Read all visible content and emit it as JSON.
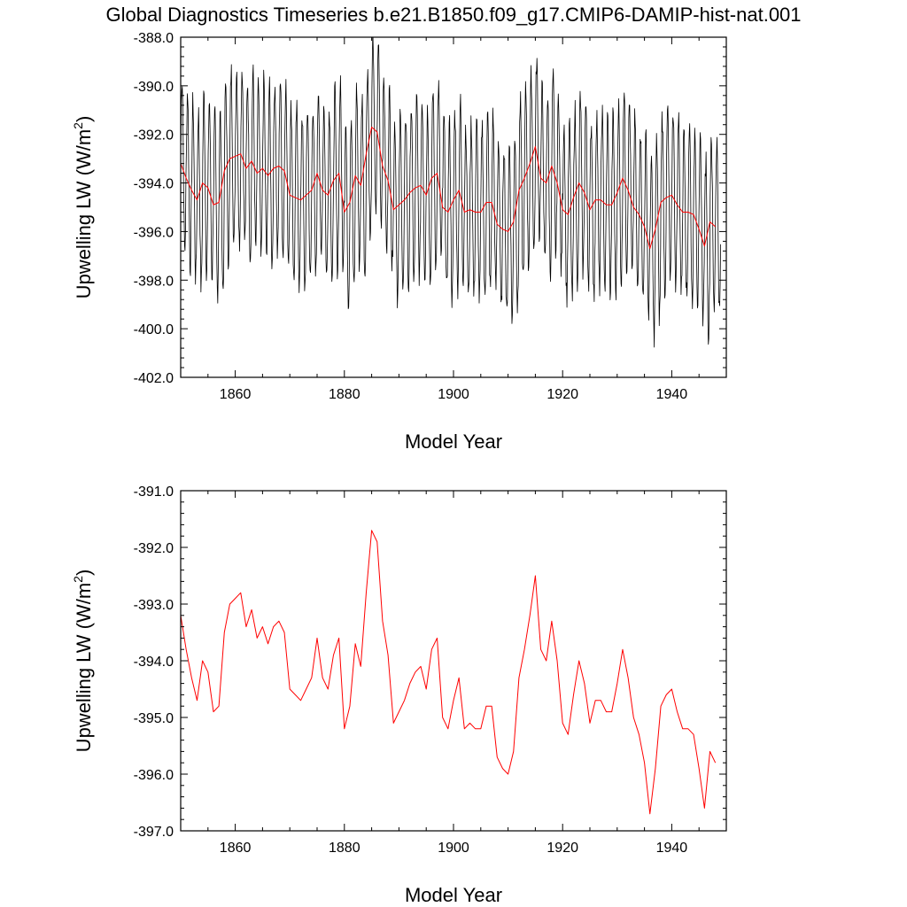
{
  "title": "Global Diagnostics Timeseries b.e21.B1850.f09_g17.CMIP6-DAMIP-hist-nat.001",
  "colors": {
    "monthly": "#000000",
    "annual": "#ff0000",
    "axis": "#000000"
  },
  "chart_data": [
    {
      "type": "line",
      "xlabel": "Model Year",
      "ylabel": "Upwelling LW (W/m",
      "ylabel_sup": "2",
      "ylabel_tail": ")",
      "xlim": [
        1850,
        1950
      ],
      "ylim": [
        -402.0,
        -388.0
      ],
      "x_ticks": [
        1860,
        1880,
        1900,
        1920,
        1940
      ],
      "y_ticks": [
        "-388.0",
        "-390.0",
        "-392.0",
        "-394.0",
        "-396.0",
        "-398.0",
        "-400.0",
        "-402.0"
      ],
      "series": [
        {
          "line_color": "#000000",
          "x_start": 1850.0417,
          "x_step": 0.083333,
          "mean": -394.4,
          "seasonal_amplitude": 3.6,
          "values_from_seasonal_cycle": true,
          "noise": 0.6
        },
        {
          "line_color": "#ff0000",
          "x_start": 1850,
          "x_step": 1,
          "values_from_annual": true
        }
      ]
    },
    {
      "type": "line",
      "xlabel": "Model Year",
      "ylabel": "Upwelling LW (W/m",
      "ylabel_sup": "2",
      "ylabel_tail": ")",
      "xlim": [
        1850,
        1950
      ],
      "ylim": [
        -397.0,
        -391.0
      ],
      "x_ticks": [
        1860,
        1880,
        1900,
        1920,
        1940
      ],
      "y_ticks": [
        "-391.0",
        "-392.0",
        "-393.0",
        "-394.0",
        "-395.0",
        "-396.0",
        "-397.0"
      ],
      "series": [
        {
          "line_color": "#ff0000",
          "x_start": 1850,
          "x_step": 1,
          "values": [
            -393.2,
            -393.8,
            -394.3,
            -394.7,
            -394.0,
            -394.2,
            -394.9,
            -394.8,
            -393.5,
            -393.0,
            -392.9,
            -392.8,
            -393.4,
            -393.1,
            -393.6,
            -393.4,
            -393.7,
            -393.4,
            -393.3,
            -393.5,
            -394.5,
            -394.6,
            -394.7,
            -394.5,
            -394.3,
            -393.6,
            -394.3,
            -394.5,
            -393.9,
            -393.6,
            -395.2,
            -394.8,
            -393.7,
            -394.1,
            -392.8,
            -391.7,
            -391.9,
            -393.3,
            -393.9,
            -395.1,
            -394.9,
            -394.7,
            -394.4,
            -394.2,
            -394.1,
            -394.5,
            -393.8,
            -393.6,
            -395.0,
            -395.2,
            -394.7,
            -394.3,
            -395.2,
            -395.1,
            -395.2,
            -395.2,
            -394.8,
            -394.8,
            -395.7,
            -395.9,
            -396.0,
            -395.6,
            -394.3,
            -393.8,
            -393.2,
            -392.5,
            -393.8,
            -394.0,
            -393.3,
            -394.0,
            -395.1,
            -395.3,
            -394.6,
            -394.0,
            -394.4,
            -395.1,
            -394.7,
            -394.7,
            -394.9,
            -394.9,
            -394.4,
            -393.8,
            -394.3,
            -395.0,
            -395.3,
            -395.8,
            -396.7,
            -395.9,
            -394.8,
            -394.6,
            -394.5,
            -394.9,
            -395.2,
            -395.2,
            -395.3,
            -395.9,
            -396.6,
            -395.6,
            -395.8
          ]
        }
      ]
    }
  ]
}
